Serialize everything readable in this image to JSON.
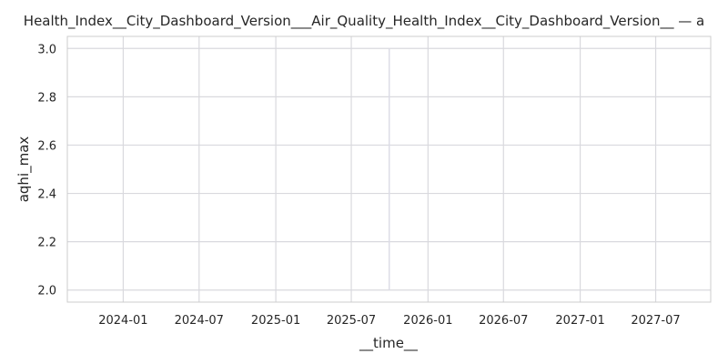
{
  "chart_data": {
    "type": "line",
    "title": "Health_Index__City_Dashboard_Version___Air_Quality_Health_Index__City_Dashboard_Version__ — a",
    "xlabel": "__time__",
    "ylabel": "aqhi_max",
    "x_tick_labels": [
      "2024-01",
      "2024-07",
      "2025-01",
      "2025-07",
      "2026-01",
      "2026-07",
      "2027-01",
      "2027-07"
    ],
    "y_tick_labels": [
      "2.0",
      "2.2",
      "2.4",
      "2.6",
      "2.8",
      "3.0"
    ],
    "xlim": [
      "2023-08-20",
      "2027-11-10"
    ],
    "ylim": [
      1.95,
      3.05
    ],
    "series": [
      {
        "x": [
          "2025-09-30",
          "2025-09-30"
        ],
        "values": [
          2.0,
          3.0
        ]
      }
    ],
    "grid": true,
    "colors": {
      "grid": "#d9d9de",
      "spine": "#cccccc",
      "series": "#dcdce6"
    }
  }
}
